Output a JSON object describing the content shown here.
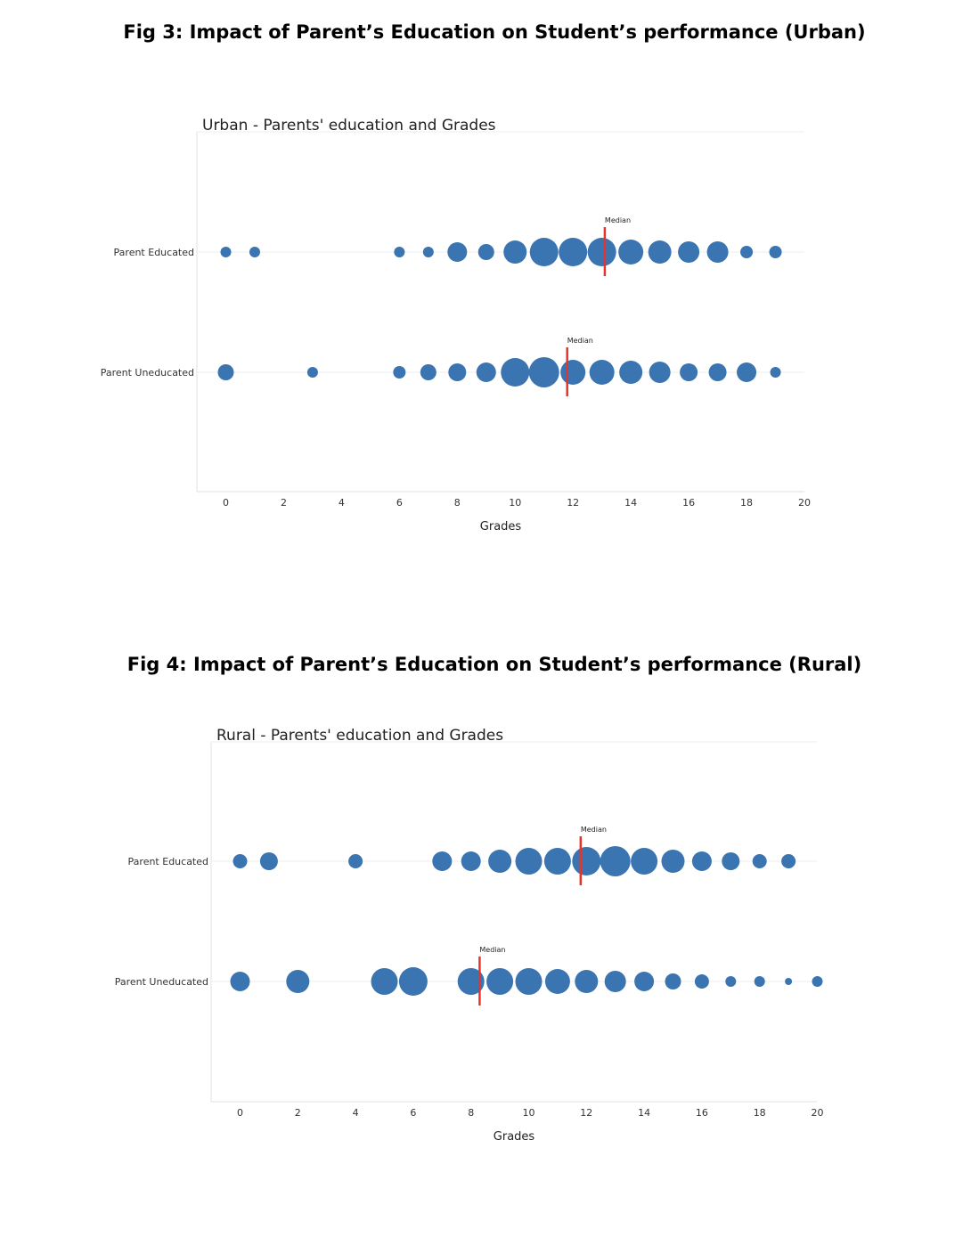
{
  "captions": {
    "fig3": "Fig 3: Impact of Parent’s Education on Student’s performance (Urban)",
    "fig4": "Fig 4: Impact of Parent’s Education on Student’s performance (Rural)"
  },
  "colors": {
    "bubble": "#3a74b1",
    "median": "#e8332a",
    "grid": "#ececec",
    "axis": "#e2e2e2"
  },
  "chart_data": [
    {
      "type": "scatter",
      "title": "Urban - Parents' education and Grades",
      "xlabel": "Grades",
      "ylabel": "",
      "xlim": [
        -1,
        20
      ],
      "xticks": [
        0,
        2,
        4,
        6,
        8,
        10,
        12,
        14,
        16,
        18,
        20
      ],
      "categories": [
        "Parent Educated",
        "Parent Uneducated"
      ],
      "series": [
        {
          "category": "Parent Educated",
          "points": [
            [
              0,
              6
            ],
            [
              1,
              6
            ],
            [
              6,
              6
            ],
            [
              7,
              6
            ],
            [
              8,
              11
            ],
            [
              9,
              9
            ],
            [
              10,
              13
            ],
            [
              11,
              16
            ],
            [
              12,
              16
            ],
            [
              13,
              16
            ],
            [
              14,
              14
            ],
            [
              15,
              13
            ],
            [
              16,
              12
            ],
            [
              17,
              12
            ],
            [
              18,
              7
            ],
            [
              19,
              7
            ]
          ],
          "median": 13.1,
          "median_label": "Median"
        },
        {
          "category": "Parent Uneducated",
          "points": [
            [
              0,
              9
            ],
            [
              3,
              6
            ],
            [
              6,
              7
            ],
            [
              7,
              9
            ],
            [
              8,
              10
            ],
            [
              9,
              11
            ],
            [
              10,
              16
            ],
            [
              11,
              17
            ],
            [
              12,
              14
            ],
            [
              13,
              14
            ],
            [
              14,
              13
            ],
            [
              15,
              12
            ],
            [
              16,
              10
            ],
            [
              17,
              10
            ],
            [
              18,
              11
            ],
            [
              19,
              6
            ]
          ],
          "median": 11.8,
          "median_label": "Median"
        }
      ]
    },
    {
      "type": "scatter",
      "title": "Rural - Parents' education and Grades",
      "xlabel": "Grades",
      "ylabel": "",
      "xlim": [
        -1,
        20
      ],
      "xticks": [
        0,
        2,
        4,
        6,
        8,
        10,
        12,
        14,
        16,
        18,
        20
      ],
      "categories": [
        "Parent Educated",
        "Parent Uneducated"
      ],
      "series": [
        {
          "category": "Parent Educated",
          "points": [
            [
              0,
              8
            ],
            [
              1,
              10
            ],
            [
              4,
              8
            ],
            [
              7,
              11
            ],
            [
              8,
              11
            ],
            [
              9,
              13
            ],
            [
              10,
              15
            ],
            [
              11,
              15
            ],
            [
              12,
              16
            ],
            [
              13,
              17
            ],
            [
              14,
              15
            ],
            [
              15,
              13
            ],
            [
              16,
              11
            ],
            [
              17,
              10
            ],
            [
              18,
              8
            ],
            [
              19,
              8
            ]
          ],
          "median": 11.8,
          "median_label": "Median"
        },
        {
          "category": "Parent Uneducated",
          "points": [
            [
              0,
              11
            ],
            [
              2,
              13
            ],
            [
              5,
              15
            ],
            [
              6,
              16
            ],
            [
              8,
              15
            ],
            [
              9,
              15
            ],
            [
              10,
              15
            ],
            [
              11,
              14
            ],
            [
              12,
              13
            ],
            [
              13,
              12
            ],
            [
              14,
              11
            ],
            [
              15,
              9
            ],
            [
              16,
              8
            ],
            [
              17,
              6
            ],
            [
              18,
              6
            ],
            [
              19,
              4
            ],
            [
              20,
              6
            ]
          ],
          "median": 8.3,
          "median_label": "Median"
        }
      ]
    }
  ]
}
